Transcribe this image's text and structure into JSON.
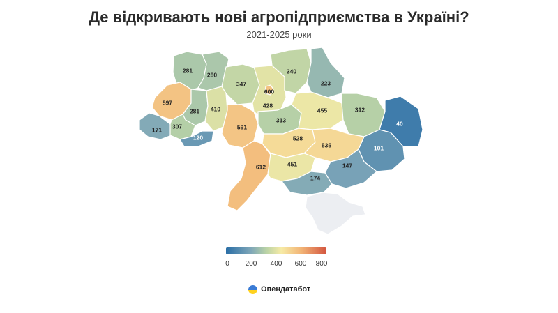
{
  "header": {
    "title": "Де відкривають нові агропідприємства в Україні?",
    "subtitle": "2021-2025 роки"
  },
  "map": {
    "type": "choropleth",
    "value_scale": {
      "min": 0,
      "max": 800,
      "colors": [
        "#2a6ea6",
        "#7fa7b8",
        "#b9d2a6",
        "#f6eba6",
        "#f2b476",
        "#d3553f"
      ]
    },
    "regions": [
      {
        "id": "volyn",
        "value": 281
      },
      {
        "id": "rivne",
        "value": 280
      },
      {
        "id": "zhytomyr",
        "value": 347
      },
      {
        "id": "kyiv-oblast",
        "value": 428
      },
      {
        "id": "kyiv-city",
        "value": 600
      },
      {
        "id": "chernihiv",
        "value": 340
      },
      {
        "id": "sumy",
        "value": 223
      },
      {
        "id": "lviv",
        "value": 597
      },
      {
        "id": "ternopil",
        "value": 281
      },
      {
        "id": "khmelnytskyi",
        "value": 410
      },
      {
        "id": "zakarpattia",
        "value": 171
      },
      {
        "id": "ivano-frankivsk",
        "value": 307
      },
      {
        "id": "chernivtsi",
        "value": 120
      },
      {
        "id": "vinnytsia",
        "value": 591
      },
      {
        "id": "cherkasy",
        "value": 313
      },
      {
        "id": "poltava",
        "value": 455
      },
      {
        "id": "kharkiv",
        "value": 312
      },
      {
        "id": "luhansk",
        "value": 40
      },
      {
        "id": "donetsk",
        "value": 101
      },
      {
        "id": "kirovohrad",
        "value": 528
      },
      {
        "id": "dnipropetrovsk",
        "value": 535
      },
      {
        "id": "zaporizhzhia",
        "value": 147
      },
      {
        "id": "odesa",
        "value": 612
      },
      {
        "id": "mykolaiv",
        "value": 451
      },
      {
        "id": "kherson",
        "value": 174
      }
    ]
  },
  "legend": {
    "ticks": [
      "0",
      "200",
      "400",
      "600",
      "800"
    ]
  },
  "brand": {
    "name": "Опендатабот"
  }
}
